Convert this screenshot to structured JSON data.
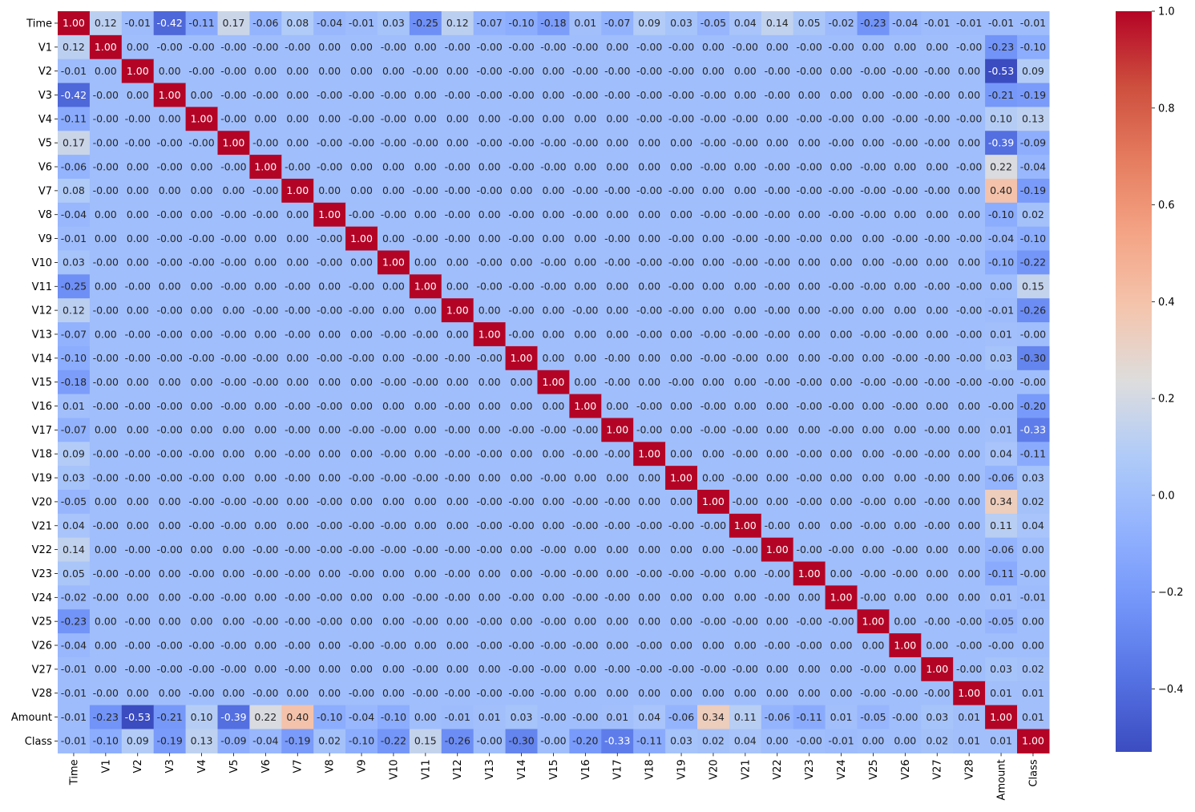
{
  "chart_data": {
    "type": "heatmap",
    "title": "",
    "xlabel": "",
    "ylabel": "",
    "labels": [
      "Time",
      "V1",
      "V2",
      "V3",
      "V4",
      "V5",
      "V6",
      "V7",
      "V8",
      "V9",
      "V10",
      "V11",
      "V12",
      "V13",
      "V14",
      "V15",
      "V16",
      "V17",
      "V18",
      "V19",
      "V20",
      "V21",
      "V22",
      "V23",
      "V24",
      "V25",
      "V26",
      "V27",
      "V28",
      "Amount",
      "Class"
    ],
    "value_format": "fixed-2",
    "colormap": "coolwarm",
    "colorbar": {
      "vmin": -0.53,
      "vmax": 1.0,
      "ticks": [
        -0.4,
        -0.2,
        0.0,
        0.2,
        0.4,
        0.6,
        0.8,
        1.0
      ],
      "tick_labels": [
        "−0.4",
        "−0.2",
        "0.0",
        "0.2",
        "0.4",
        "0.6",
        "0.8",
        "1.0"
      ]
    },
    "matrix": [
      [
        1.0,
        0.12,
        -0.01,
        -0.42,
        -0.11,
        0.17,
        -0.06,
        0.08,
        -0.04,
        -0.01,
        0.03,
        -0.25,
        0.12,
        -0.07,
        -0.1,
        -0.18,
        0.01,
        -0.07,
        0.09,
        0.03,
        -0.05,
        0.04,
        0.14,
        0.05,
        -0.02,
        -0.23,
        -0.04,
        -0.01,
        -0.01,
        -0.01,
        -0.01
      ],
      [
        0.12,
        1.0,
        0.0,
        -0.0,
        -0.0,
        -0.0,
        -0.0,
        -0.0,
        0.0,
        0.0,
        -0.0,
        0.0,
        -0.0,
        -0.0,
        -0.0,
        -0.0,
        -0.0,
        0.0,
        -0.0,
        -0.0,
        0.0,
        -0.0,
        0.0,
        -0.0,
        -0.0,
        0.0,
        0.0,
        0.0,
        -0.0,
        -0.23,
        -0.1
      ],
      [
        -0.01,
        0.0,
        1.0,
        0.0,
        -0.0,
        -0.0,
        0.0,
        0.0,
        0.0,
        0.0,
        0.0,
        -0.0,
        0.0,
        -0.0,
        -0.0,
        0.0,
        -0.0,
        -0.0,
        -0.0,
        -0.0,
        0.0,
        0.0,
        -0.0,
        -0.0,
        0.0,
        -0.0,
        -0.0,
        -0.0,
        0.0,
        -0.53,
        0.09
      ],
      [
        -0.42,
        -0.0,
        0.0,
        1.0,
        0.0,
        -0.0,
        -0.0,
        0.0,
        -0.0,
        -0.0,
        -0.0,
        0.0,
        -0.0,
        -0.0,
        -0.0,
        0.0,
        -0.0,
        -0.0,
        -0.0,
        -0.0,
        -0.0,
        0.0,
        -0.0,
        0.0,
        0.0,
        0.0,
        -0.0,
        -0.0,
        0.0,
        -0.21,
        -0.19
      ],
      [
        -0.11,
        -0.0,
        -0.0,
        0.0,
        1.0,
        -0.0,
        0.0,
        0.0,
        0.0,
        -0.0,
        -0.0,
        0.0,
        0.0,
        0.0,
        -0.0,
        0.0,
        0.0,
        0.0,
        -0.0,
        -0.0,
        -0.0,
        -0.0,
        0.0,
        -0.0,
        -0.0,
        0.0,
        -0.0,
        -0.0,
        -0.0,
        0.1,
        0.13
      ],
      [
        0.17,
        -0.0,
        -0.0,
        -0.0,
        -0.0,
        1.0,
        -0.0,
        0.0,
        -0.0,
        -0.0,
        -0.0,
        -0.0,
        0.0,
        -0.0,
        -0.0,
        -0.0,
        -0.0,
        0.0,
        0.0,
        0.0,
        -0.0,
        -0.0,
        0.0,
        0.0,
        -0.0,
        0.0,
        -0.0,
        -0.0,
        0.0,
        -0.39,
        -0.09
      ],
      [
        -0.06,
        -0.0,
        0.0,
        -0.0,
        0.0,
        -0.0,
        1.0,
        -0.0,
        -0.0,
        0.0,
        0.0,
        0.0,
        -0.0,
        0.0,
        -0.0,
        -0.0,
        0.0,
        0.0,
        0.0,
        0.0,
        -0.0,
        0.0,
        -0.0,
        -0.0,
        0.0,
        -0.0,
        0.0,
        0.0,
        -0.0,
        0.22,
        -0.04
      ],
      [
        0.08,
        -0.0,
        0.0,
        0.0,
        0.0,
        0.0,
        -0.0,
        1.0,
        0.0,
        0.0,
        0.0,
        -0.0,
        -0.0,
        -0.0,
        0.0,
        0.0,
        -0.0,
        -0.0,
        -0.0,
        -0.0,
        0.0,
        0.0,
        -0.0,
        -0.0,
        -0.0,
        -0.0,
        -0.0,
        -0.0,
        0.0,
        0.4,
        -0.19
      ],
      [
        -0.04,
        0.0,
        0.0,
        -0.0,
        0.0,
        -0.0,
        -0.0,
        0.0,
        1.0,
        -0.0,
        -0.0,
        0.0,
        -0.0,
        0.0,
        -0.0,
        0.0,
        -0.0,
        0.0,
        0.0,
        0.0,
        -0.0,
        -0.0,
        -0.0,
        0.0,
        -0.0,
        -0.0,
        0.0,
        0.0,
        0.0,
        -0.1,
        0.02
      ],
      [
        -0.01,
        0.0,
        0.0,
        -0.0,
        -0.0,
        -0.0,
        0.0,
        0.0,
        -0.0,
        1.0,
        0.0,
        -0.0,
        -0.0,
        0.0,
        -0.0,
        0.0,
        0.0,
        -0.0,
        0.0,
        -0.0,
        0.0,
        -0.0,
        -0.0,
        -0.0,
        0.0,
        0.0,
        -0.0,
        -0.0,
        -0.0,
        -0.04,
        -0.1
      ],
      [
        0.03,
        -0.0,
        0.0,
        -0.0,
        -0.0,
        -0.0,
        0.0,
        0.0,
        -0.0,
        0.0,
        1.0,
        0.0,
        0.0,
        -0.0,
        0.0,
        -0.0,
        0.0,
        -0.0,
        -0.0,
        -0.0,
        0.0,
        -0.0,
        -0.0,
        0.0,
        0.0,
        0.0,
        -0.0,
        0.0,
        0.0,
        -0.1,
        -0.22
      ],
      [
        -0.25,
        0.0,
        -0.0,
        0.0,
        0.0,
        -0.0,
        0.0,
        -0.0,
        0.0,
        -0.0,
        0.0,
        1.0,
        0.0,
        -0.0,
        -0.0,
        -0.0,
        0.0,
        0.0,
        0.0,
        -0.0,
        0.0,
        0.0,
        -0.0,
        0.0,
        -0.0,
        -0.0,
        0.0,
        -0.0,
        -0.0,
        0.0,
        0.15
      ],
      [
        0.12,
        -0.0,
        0.0,
        -0.0,
        0.0,
        0.0,
        -0.0,
        -0.0,
        -0.0,
        -0.0,
        0.0,
        0.0,
        1.0,
        0.0,
        -0.0,
        0.0,
        -0.0,
        0.0,
        -0.0,
        -0.0,
        0.0,
        0.0,
        -0.0,
        0.0,
        -0.0,
        0.0,
        0.0,
        0.0,
        -0.0,
        -0.01,
        -0.26
      ],
      [
        -0.07,
        0.0,
        -0.0,
        -0.0,
        0.0,
        -0.0,
        0.0,
        -0.0,
        0.0,
        0.0,
        -0.0,
        -0.0,
        0.0,
        1.0,
        -0.0,
        0.0,
        0.0,
        0.0,
        -0.0,
        0.0,
        -0.0,
        -0.0,
        -0.0,
        0.0,
        0.0,
        -0.0,
        -0.0,
        0.0,
        -0.0,
        0.01,
        -0.0
      ],
      [
        -0.1,
        -0.0,
        -0.0,
        -0.0,
        -0.0,
        -0.0,
        -0.0,
        0.0,
        -0.0,
        -0.0,
        0.0,
        -0.0,
        -0.0,
        -0.0,
        1.0,
        0.0,
        0.0,
        -0.0,
        0.0,
        0.0,
        -0.0,
        -0.0,
        0.0,
        0.0,
        -0.0,
        0.0,
        -0.0,
        -0.0,
        -0.0,
        0.03,
        -0.3
      ],
      [
        -0.18,
        -0.0,
        0.0,
        0.0,
        0.0,
        -0.0,
        -0.0,
        0.0,
        0.0,
        0.0,
        -0.0,
        -0.0,
        0.0,
        0.0,
        0.0,
        1.0,
        0.0,
        -0.0,
        0.0,
        -0.0,
        0.0,
        0.0,
        -0.0,
        -0.0,
        0.0,
        -0.0,
        -0.0,
        -0.0,
        -0.0,
        -0.0,
        -0.0
      ],
      [
        0.01,
        -0.0,
        -0.0,
        -0.0,
        0.0,
        -0.0,
        0.0,
        -0.0,
        -0.0,
        0.0,
        0.0,
        0.0,
        -0.0,
        0.0,
        0.0,
        0.0,
        1.0,
        0.0,
        -0.0,
        0.0,
        -0.0,
        0.0,
        0.0,
        -0.0,
        -0.0,
        0.0,
        -0.0,
        0.0,
        0.0,
        -0.0,
        -0.2
      ],
      [
        -0.07,
        0.0,
        0.0,
        -0.0,
        0.0,
        0.0,
        0.0,
        -0.0,
        0.0,
        -0.0,
        -0.0,
        0.0,
        -0.0,
        0.0,
        -0.0,
        -0.0,
        -0.0,
        1.0,
        -0.0,
        0.0,
        -0.0,
        -0.0,
        0.0,
        0.0,
        -0.0,
        0.0,
        0.0,
        -0.0,
        0.0,
        0.01,
        -0.33
      ],
      [
        0.09,
        -0.0,
        -0.0,
        -0.0,
        -0.0,
        0.0,
        0.0,
        -0.0,
        0.0,
        0.0,
        -0.0,
        0.0,
        -0.0,
        -0.0,
        0.0,
        0.0,
        -0.0,
        -0.0,
        1.0,
        0.0,
        0.0,
        -0.0,
        0.0,
        -0.0,
        0.0,
        0.0,
        -0.0,
        -0.0,
        0.0,
        0.04,
        -0.11
      ],
      [
        0.03,
        -0.0,
        -0.0,
        -0.0,
        -0.0,
        0.0,
        0.0,
        -0.0,
        0.0,
        -0.0,
        -0.0,
        -0.0,
        -0.0,
        0.0,
        0.0,
        -0.0,
        0.0,
        0.0,
        0.0,
        1.0,
        0.0,
        -0.0,
        0.0,
        -0.0,
        0.0,
        0.0,
        0.0,
        -0.0,
        0.0,
        -0.06,
        0.03
      ],
      [
        -0.05,
        0.0,
        0.0,
        0.0,
        -0.0,
        -0.0,
        -0.0,
        0.0,
        -0.0,
        0.0,
        0.0,
        0.0,
        0.0,
        -0.0,
        -0.0,
        0.0,
        -0.0,
        -0.0,
        0.0,
        0.0,
        1.0,
        -0.0,
        0.0,
        -0.0,
        0.0,
        -0.0,
        0.0,
        -0.0,
        0.0,
        0.34,
        0.02
      ],
      [
        0.04,
        -0.0,
        0.0,
        0.0,
        -0.0,
        -0.0,
        0.0,
        0.0,
        -0.0,
        -0.0,
        -0.0,
        0.0,
        0.0,
        -0.0,
        -0.0,
        0.0,
        -0.0,
        -0.0,
        -0.0,
        -0.0,
        -0.0,
        1.0,
        -0.0,
        0.0,
        0.0,
        -0.0,
        0.0,
        -0.0,
        0.0,
        0.11,
        0.04
      ],
      [
        0.14,
        0.0,
        -0.0,
        -0.0,
        0.0,
        0.0,
        -0.0,
        -0.0,
        -0.0,
        -0.0,
        -0.0,
        -0.0,
        -0.0,
        -0.0,
        0.0,
        -0.0,
        0.0,
        0.0,
        0.0,
        0.0,
        0.0,
        -0.0,
        1.0,
        -0.0,
        -0.0,
        0.0,
        -0.0,
        0.0,
        0.0,
        -0.06,
        0.0
      ],
      [
        0.05,
        -0.0,
        -0.0,
        0.0,
        -0.0,
        0.0,
        -0.0,
        -0.0,
        0.0,
        -0.0,
        0.0,
        0.0,
        -0.0,
        0.0,
        0.0,
        -0.0,
        -0.0,
        0.0,
        -0.0,
        -0.0,
        -0.0,
        0.0,
        -0.0,
        1.0,
        0.0,
        -0.0,
        -0.0,
        0.0,
        0.0,
        -0.11,
        -0.0
      ],
      [
        -0.02,
        -0.0,
        0.0,
        0.0,
        -0.0,
        -0.0,
        0.0,
        -0.0,
        -0.0,
        0.0,
        0.0,
        -0.0,
        -0.0,
        0.0,
        -0.0,
        0.0,
        -0.0,
        -0.0,
        0.0,
        0.0,
        0.0,
        0.0,
        -0.0,
        0.0,
        1.0,
        -0.0,
        0.0,
        0.0,
        0.0,
        0.01,
        -0.01
      ],
      [
        -0.23,
        0.0,
        -0.0,
        0.0,
        0.0,
        0.0,
        -0.0,
        -0.0,
        -0.0,
        0.0,
        0.0,
        -0.0,
        0.0,
        -0.0,
        0.0,
        -0.0,
        0.0,
        0.0,
        0.0,
        0.0,
        -0.0,
        -0.0,
        0.0,
        -0.0,
        -0.0,
        1.0,
        0.0,
        -0.0,
        -0.0,
        -0.05,
        0.0
      ],
      [
        -0.04,
        0.0,
        -0.0,
        -0.0,
        -0.0,
        -0.0,
        0.0,
        -0.0,
        0.0,
        -0.0,
        -0.0,
        0.0,
        0.0,
        -0.0,
        -0.0,
        -0.0,
        -0.0,
        0.0,
        -0.0,
        0.0,
        0.0,
        0.0,
        -0.0,
        -0.0,
        0.0,
        0.0,
        1.0,
        0.0,
        -0.0,
        -0.0,
        0.0
      ],
      [
        -0.01,
        0.0,
        -0.0,
        -0.0,
        -0.0,
        -0.0,
        0.0,
        -0.0,
        0.0,
        0.0,
        0.0,
        -0.0,
        0.0,
        0.0,
        -0.0,
        -0.0,
        0.0,
        -0.0,
        -0.0,
        -0.0,
        -0.0,
        -0.0,
        0.0,
        0.0,
        0.0,
        -0.0,
        0.0,
        1.0,
        -0.0,
        0.03,
        0.02
      ],
      [
        -0.01,
        -0.0,
        0.0,
        0.0,
        -0.0,
        0.0,
        -0.0,
        0.0,
        0.0,
        -0.0,
        0.0,
        -0.0,
        -0.0,
        -0.0,
        -0.0,
        -0.0,
        0.0,
        0.0,
        0.0,
        0.0,
        0.0,
        0.0,
        0.0,
        0.0,
        0.0,
        -0.0,
        -0.0,
        -0.0,
        1.0,
        0.01,
        0.01
      ],
      [
        -0.01,
        -0.23,
        -0.53,
        -0.21,
        0.1,
        -0.39,
        0.22,
        0.4,
        -0.1,
        -0.04,
        -0.1,
        0.0,
        -0.01,
        0.01,
        0.03,
        -0.0,
        -0.0,
        0.01,
        0.04,
        -0.06,
        0.34,
        0.11,
        -0.06,
        -0.11,
        0.01,
        -0.05,
        -0.0,
        0.03,
        0.01,
        1.0,
        0.01
      ],
      [
        -0.01,
        -0.1,
        0.09,
        -0.19,
        0.13,
        -0.09,
        -0.04,
        -0.19,
        0.02,
        -0.1,
        -0.22,
        0.15,
        -0.26,
        -0.0,
        -0.3,
        -0.0,
        -0.2,
        -0.33,
        -0.11,
        0.03,
        0.02,
        0.04,
        0.0,
        -0.0,
        -0.01,
        0.0,
        0.0,
        0.02,
        0.01,
        0.01,
        1.0
      ]
    ]
  }
}
